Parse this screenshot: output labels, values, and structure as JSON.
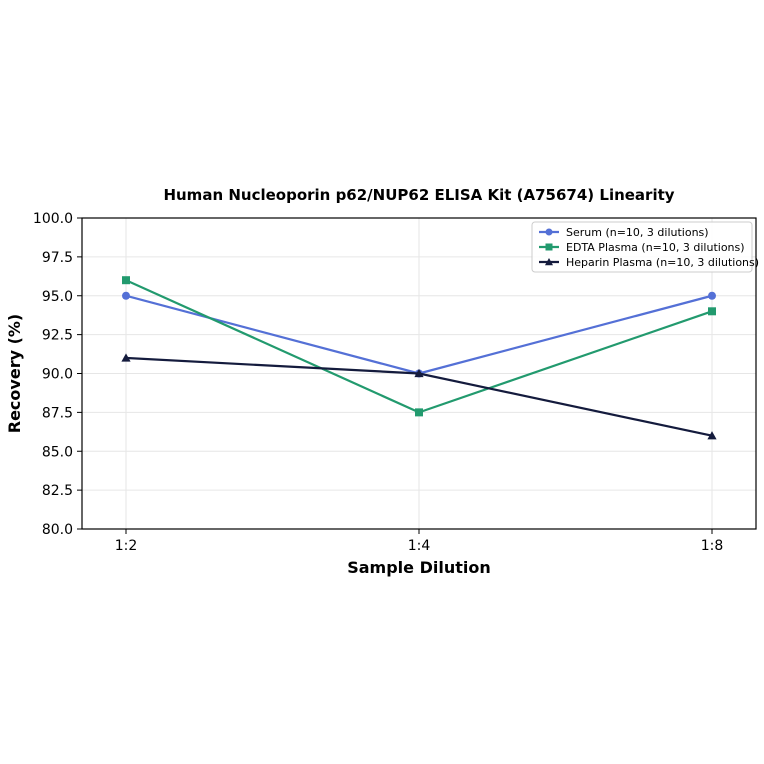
{
  "chart_data": {
    "type": "line",
    "title": "Human Nucleoporin p62/NUP62 ELISA Kit (A75674) Linearity",
    "xlabel": "Sample Dilution",
    "ylabel": "Recovery (%)",
    "categories": [
      "1:2",
      "1:4",
      "1:8"
    ],
    "ylim": [
      80.0,
      100.0
    ],
    "yticks": [
      "80.0",
      "82.5",
      "85.0",
      "87.5",
      "90.0",
      "92.5",
      "95.0",
      "97.5",
      "100.0"
    ],
    "grid": true,
    "legend_position": "top-right",
    "series": [
      {
        "name": "Serum (n=10, 3 dilutions)",
        "values": [
          95.0,
          90.0,
          95.0
        ],
        "color": "#5470d6",
        "marker": "circle"
      },
      {
        "name": "EDTA Plasma (n=10, 3 dilutions)",
        "values": [
          96.0,
          87.5,
          94.0
        ],
        "color": "#229a6e",
        "marker": "square"
      },
      {
        "name": "Heparin Plasma (n=10, 3 dilutions)",
        "values": [
          91.0,
          90.0,
          86.0
        ],
        "color": "#141b3d",
        "marker": "triangle"
      }
    ]
  }
}
